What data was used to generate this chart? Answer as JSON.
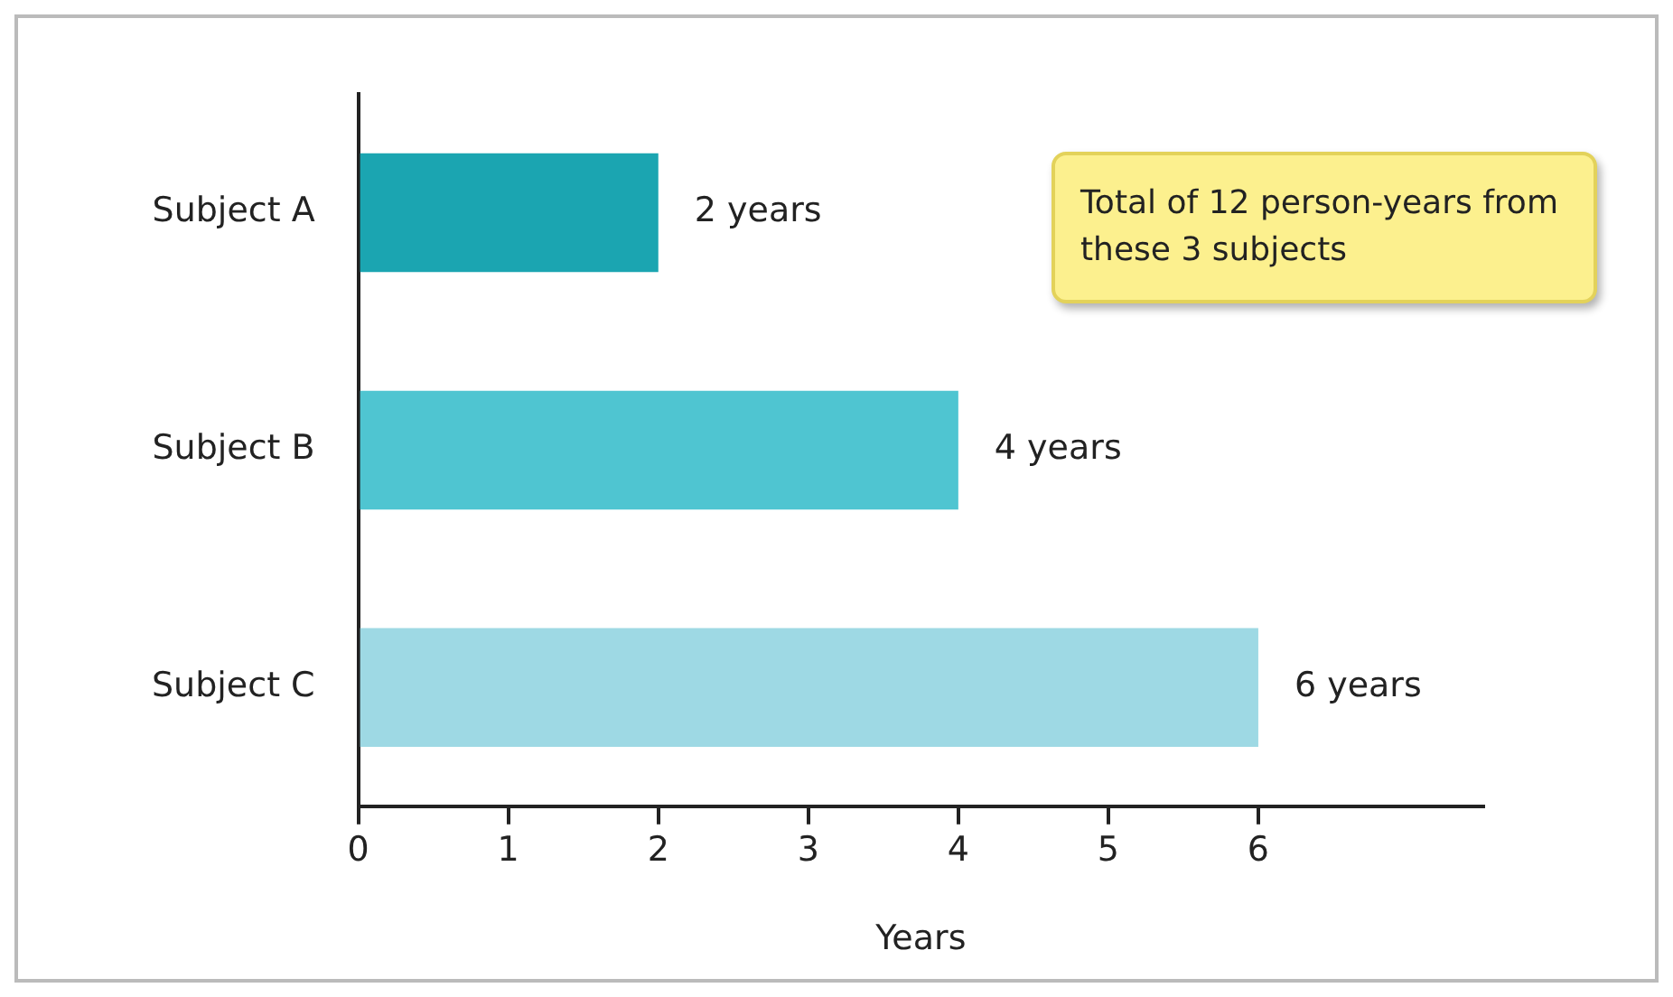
{
  "chart_data": {
    "type": "bar",
    "orientation": "horizontal",
    "xlabel": "Years",
    "categories": [
      "Subject A",
      "Subject B",
      "Subject C"
    ],
    "values": [
      2,
      4,
      6
    ],
    "colors": [
      "#1ba5b1",
      "#4fc5d1",
      "#9ed9e4"
    ],
    "value_labels": [
      "2 years",
      "4 years",
      "6 years"
    ],
    "xlim": [
      0,
      7.5
    ],
    "xticks": [
      0,
      1,
      2,
      3,
      4,
      5,
      6
    ],
    "grid": false,
    "annotations": [
      "Total of 12 person-years from these 3 subjects"
    ]
  }
}
